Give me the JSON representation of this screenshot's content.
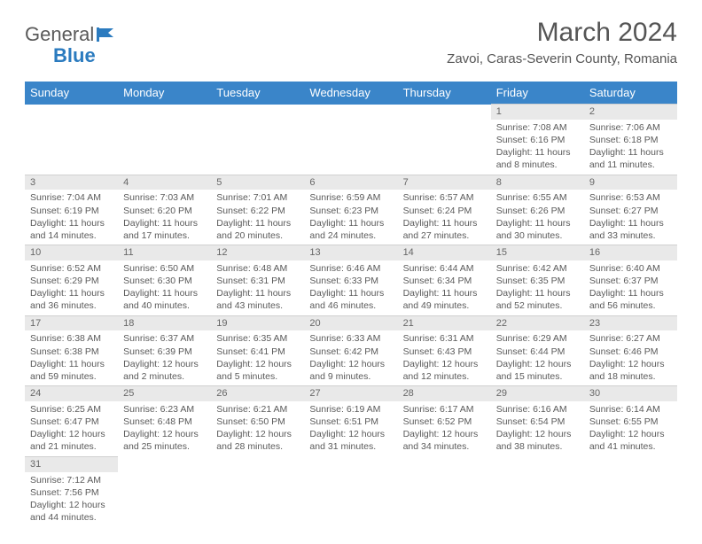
{
  "colors": {
    "header_bg": "#3a85c9",
    "header_text": "#ffffff",
    "daynum_bg": "#e9e9e9",
    "body_text": "#5a5a5a",
    "logo_blue": "#2b7bbf",
    "page_bg": "#ffffff"
  },
  "typography": {
    "title_fontsize": 30,
    "location_fontsize": 15,
    "dayheader_fontsize": 13,
    "cell_fontsize": 10.5
  },
  "logo": {
    "text1": "General",
    "text2": "Blue"
  },
  "title": "March 2024",
  "location": "Zavoi, Caras-Severin County, Romania",
  "day_headers": [
    "Sunday",
    "Monday",
    "Tuesday",
    "Wednesday",
    "Thursday",
    "Friday",
    "Saturday"
  ],
  "weeks": [
    {
      "nums": [
        "",
        "",
        "",
        "",
        "",
        "1",
        "2"
      ],
      "cells": [
        null,
        null,
        null,
        null,
        null,
        {
          "sr": "Sunrise: 7:08 AM",
          "ss": "Sunset: 6:16 PM",
          "dl1": "Daylight: 11 hours",
          "dl2": "and 8 minutes."
        },
        {
          "sr": "Sunrise: 7:06 AM",
          "ss": "Sunset: 6:18 PM",
          "dl1": "Daylight: 11 hours",
          "dl2": "and 11 minutes."
        }
      ]
    },
    {
      "nums": [
        "3",
        "4",
        "5",
        "6",
        "7",
        "8",
        "9"
      ],
      "cells": [
        {
          "sr": "Sunrise: 7:04 AM",
          "ss": "Sunset: 6:19 PM",
          "dl1": "Daylight: 11 hours",
          "dl2": "and 14 minutes."
        },
        {
          "sr": "Sunrise: 7:03 AM",
          "ss": "Sunset: 6:20 PM",
          "dl1": "Daylight: 11 hours",
          "dl2": "and 17 minutes."
        },
        {
          "sr": "Sunrise: 7:01 AM",
          "ss": "Sunset: 6:22 PM",
          "dl1": "Daylight: 11 hours",
          "dl2": "and 20 minutes."
        },
        {
          "sr": "Sunrise: 6:59 AM",
          "ss": "Sunset: 6:23 PM",
          "dl1": "Daylight: 11 hours",
          "dl2": "and 24 minutes."
        },
        {
          "sr": "Sunrise: 6:57 AM",
          "ss": "Sunset: 6:24 PM",
          "dl1": "Daylight: 11 hours",
          "dl2": "and 27 minutes."
        },
        {
          "sr": "Sunrise: 6:55 AM",
          "ss": "Sunset: 6:26 PM",
          "dl1": "Daylight: 11 hours",
          "dl2": "and 30 minutes."
        },
        {
          "sr": "Sunrise: 6:53 AM",
          "ss": "Sunset: 6:27 PM",
          "dl1": "Daylight: 11 hours",
          "dl2": "and 33 minutes."
        }
      ]
    },
    {
      "nums": [
        "10",
        "11",
        "12",
        "13",
        "14",
        "15",
        "16"
      ],
      "cells": [
        {
          "sr": "Sunrise: 6:52 AM",
          "ss": "Sunset: 6:29 PM",
          "dl1": "Daylight: 11 hours",
          "dl2": "and 36 minutes."
        },
        {
          "sr": "Sunrise: 6:50 AM",
          "ss": "Sunset: 6:30 PM",
          "dl1": "Daylight: 11 hours",
          "dl2": "and 40 minutes."
        },
        {
          "sr": "Sunrise: 6:48 AM",
          "ss": "Sunset: 6:31 PM",
          "dl1": "Daylight: 11 hours",
          "dl2": "and 43 minutes."
        },
        {
          "sr": "Sunrise: 6:46 AM",
          "ss": "Sunset: 6:33 PM",
          "dl1": "Daylight: 11 hours",
          "dl2": "and 46 minutes."
        },
        {
          "sr": "Sunrise: 6:44 AM",
          "ss": "Sunset: 6:34 PM",
          "dl1": "Daylight: 11 hours",
          "dl2": "and 49 minutes."
        },
        {
          "sr": "Sunrise: 6:42 AM",
          "ss": "Sunset: 6:35 PM",
          "dl1": "Daylight: 11 hours",
          "dl2": "and 52 minutes."
        },
        {
          "sr": "Sunrise: 6:40 AM",
          "ss": "Sunset: 6:37 PM",
          "dl1": "Daylight: 11 hours",
          "dl2": "and 56 minutes."
        }
      ]
    },
    {
      "nums": [
        "17",
        "18",
        "19",
        "20",
        "21",
        "22",
        "23"
      ],
      "cells": [
        {
          "sr": "Sunrise: 6:38 AM",
          "ss": "Sunset: 6:38 PM",
          "dl1": "Daylight: 11 hours",
          "dl2": "and 59 minutes."
        },
        {
          "sr": "Sunrise: 6:37 AM",
          "ss": "Sunset: 6:39 PM",
          "dl1": "Daylight: 12 hours",
          "dl2": "and 2 minutes."
        },
        {
          "sr": "Sunrise: 6:35 AM",
          "ss": "Sunset: 6:41 PM",
          "dl1": "Daylight: 12 hours",
          "dl2": "and 5 minutes."
        },
        {
          "sr": "Sunrise: 6:33 AM",
          "ss": "Sunset: 6:42 PM",
          "dl1": "Daylight: 12 hours",
          "dl2": "and 9 minutes."
        },
        {
          "sr": "Sunrise: 6:31 AM",
          "ss": "Sunset: 6:43 PM",
          "dl1": "Daylight: 12 hours",
          "dl2": "and 12 minutes."
        },
        {
          "sr": "Sunrise: 6:29 AM",
          "ss": "Sunset: 6:44 PM",
          "dl1": "Daylight: 12 hours",
          "dl2": "and 15 minutes."
        },
        {
          "sr": "Sunrise: 6:27 AM",
          "ss": "Sunset: 6:46 PM",
          "dl1": "Daylight: 12 hours",
          "dl2": "and 18 minutes."
        }
      ]
    },
    {
      "nums": [
        "24",
        "25",
        "26",
        "27",
        "28",
        "29",
        "30"
      ],
      "cells": [
        {
          "sr": "Sunrise: 6:25 AM",
          "ss": "Sunset: 6:47 PM",
          "dl1": "Daylight: 12 hours",
          "dl2": "and 21 minutes."
        },
        {
          "sr": "Sunrise: 6:23 AM",
          "ss": "Sunset: 6:48 PM",
          "dl1": "Daylight: 12 hours",
          "dl2": "and 25 minutes."
        },
        {
          "sr": "Sunrise: 6:21 AM",
          "ss": "Sunset: 6:50 PM",
          "dl1": "Daylight: 12 hours",
          "dl2": "and 28 minutes."
        },
        {
          "sr": "Sunrise: 6:19 AM",
          "ss": "Sunset: 6:51 PM",
          "dl1": "Daylight: 12 hours",
          "dl2": "and 31 minutes."
        },
        {
          "sr": "Sunrise: 6:17 AM",
          "ss": "Sunset: 6:52 PM",
          "dl1": "Daylight: 12 hours",
          "dl2": "and 34 minutes."
        },
        {
          "sr": "Sunrise: 6:16 AM",
          "ss": "Sunset: 6:54 PM",
          "dl1": "Daylight: 12 hours",
          "dl2": "and 38 minutes."
        },
        {
          "sr": "Sunrise: 6:14 AM",
          "ss": "Sunset: 6:55 PM",
          "dl1": "Daylight: 12 hours",
          "dl2": "and 41 minutes."
        }
      ]
    },
    {
      "nums": [
        "31",
        "",
        "",
        "",
        "",
        "",
        ""
      ],
      "cells": [
        {
          "sr": "Sunrise: 7:12 AM",
          "ss": "Sunset: 7:56 PM",
          "dl1": "Daylight: 12 hours",
          "dl2": "and 44 minutes."
        },
        null,
        null,
        null,
        null,
        null,
        null
      ]
    }
  ]
}
